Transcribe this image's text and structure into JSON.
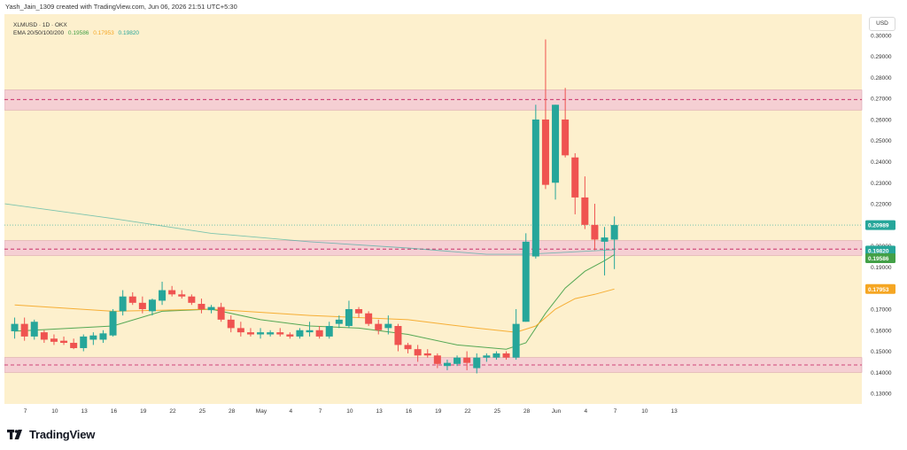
{
  "header": {
    "text": "Yash_Jain_1309 created with TradingView.com, Jun 06, 2026 21:51 UTC+5:30"
  },
  "legend": {
    "symbol_line": "XLMUSD · 1D · OKX",
    "ema_label": "EMA 20/50/100/200",
    "ema_values": [
      "0.19586",
      "0.17953",
      "0.19820"
    ],
    "ema_colors": [
      "#43a047",
      "#f5a623",
      "#26a69a"
    ]
  },
  "currency": "USD",
  "footer": {
    "logo_text": "TradingView"
  },
  "colors": {
    "background": "#fdf0cd",
    "up": "#26a69a",
    "down": "#ef5350",
    "zone_fill": "#f3c9d3",
    "zone_edge": "#c2185b",
    "ema20": "#43a047",
    "ema50": "#f5a623",
    "ema200": "#26a69a",
    "price_label": "#26a69a"
  },
  "chart_data": {
    "type": "candlestick",
    "symbol": "XLMUSD",
    "timeframe": "1D",
    "exchange": "OKX",
    "ylim": [
      0.125,
      0.31
    ],
    "y_ticks": [
      0.13,
      0.14,
      0.15,
      0.16,
      0.17,
      0.18,
      0.19,
      0.2,
      0.21,
      0.22,
      0.23,
      0.24,
      0.25,
      0.26,
      0.27,
      0.28,
      0.29,
      0.3
    ],
    "y_tick_labels": [
      "0.13000",
      "0.14000",
      "0.15000",
      "0.16000",
      "0.17000",
      "0.18000",
      "0.19000",
      "0.20000",
      "0.21000",
      "0.22000",
      "0.23000",
      "0.24000",
      "0.25000",
      "0.26000",
      "0.27000",
      "0.28000",
      "0.29000",
      "0.30000"
    ],
    "x_tick_labels": [
      "7",
      "10",
      "13",
      "16",
      "19",
      "22",
      "25",
      "28",
      "May",
      "4",
      "7",
      "10",
      "13",
      "16",
      "19",
      "22",
      "25",
      "28",
      "Jun",
      "4",
      "7",
      "10",
      "13"
    ],
    "x_start_index": 0,
    "x_tick_step": 3,
    "total_slots": 69,
    "candles": [
      {
        "o": 0.1595,
        "h": 0.166,
        "l": 0.156,
        "c": 0.163
      },
      {
        "o": 0.163,
        "h": 0.166,
        "l": 0.155,
        "c": 0.157
      },
      {
        "o": 0.157,
        "h": 0.165,
        "l": 0.1555,
        "c": 0.164
      },
      {
        "o": 0.159,
        "h": 0.16,
        "l": 0.154,
        "c": 0.1555
      },
      {
        "o": 0.156,
        "h": 0.158,
        "l": 0.153,
        "c": 0.1545
      },
      {
        "o": 0.155,
        "h": 0.157,
        "l": 0.153,
        "c": 0.154
      },
      {
        "o": 0.154,
        "h": 0.156,
        "l": 0.151,
        "c": 0.1515
      },
      {
        "o": 0.1515,
        "h": 0.158,
        "l": 0.15,
        "c": 0.157
      },
      {
        "o": 0.1555,
        "h": 0.159,
        "l": 0.153,
        "c": 0.1575
      },
      {
        "o": 0.1555,
        "h": 0.16,
        "l": 0.154,
        "c": 0.1585
      },
      {
        "o": 0.1575,
        "h": 0.17,
        "l": 0.157,
        "c": 0.169
      },
      {
        "o": 0.169,
        "h": 0.179,
        "l": 0.167,
        "c": 0.176
      },
      {
        "o": 0.176,
        "h": 0.178,
        "l": 0.172,
        "c": 0.173
      },
      {
        "o": 0.173,
        "h": 0.176,
        "l": 0.168,
        "c": 0.17
      },
      {
        "o": 0.169,
        "h": 0.175,
        "l": 0.167,
        "c": 0.1745
      },
      {
        "o": 0.174,
        "h": 0.183,
        "l": 0.172,
        "c": 0.179
      },
      {
        "o": 0.179,
        "h": 0.181,
        "l": 0.176,
        "c": 0.177
      },
      {
        "o": 0.177,
        "h": 0.179,
        "l": 0.175,
        "c": 0.176
      },
      {
        "o": 0.176,
        "h": 0.177,
        "l": 0.172,
        "c": 0.173
      },
      {
        "o": 0.1725,
        "h": 0.175,
        "l": 0.168,
        "c": 0.17
      },
      {
        "o": 0.1695,
        "h": 0.172,
        "l": 0.168,
        "c": 0.171
      },
      {
        "o": 0.171,
        "h": 0.173,
        "l": 0.164,
        "c": 0.165
      },
      {
        "o": 0.165,
        "h": 0.167,
        "l": 0.159,
        "c": 0.161
      },
      {
        "o": 0.161,
        "h": 0.164,
        "l": 0.157,
        "c": 0.159
      },
      {
        "o": 0.159,
        "h": 0.161,
        "l": 0.157,
        "c": 0.158
      },
      {
        "o": 0.158,
        "h": 0.161,
        "l": 0.156,
        "c": 0.159
      },
      {
        "o": 0.158,
        "h": 0.16,
        "l": 0.157,
        "c": 0.159
      },
      {
        "o": 0.159,
        "h": 0.161,
        "l": 0.157,
        "c": 0.158
      },
      {
        "o": 0.158,
        "h": 0.159,
        "l": 0.156,
        "c": 0.157
      },
      {
        "o": 0.157,
        "h": 0.161,
        "l": 0.156,
        "c": 0.16
      },
      {
        "o": 0.159,
        "h": 0.164,
        "l": 0.157,
        "c": 0.16
      },
      {
        "o": 0.16,
        "h": 0.162,
        "l": 0.156,
        "c": 0.157
      },
      {
        "o": 0.157,
        "h": 0.164,
        "l": 0.156,
        "c": 0.162
      },
      {
        "o": 0.163,
        "h": 0.167,
        "l": 0.161,
        "c": 0.165
      },
      {
        "o": 0.162,
        "h": 0.174,
        "l": 0.161,
        "c": 0.17
      },
      {
        "o": 0.17,
        "h": 0.171,
        "l": 0.166,
        "c": 0.168
      },
      {
        "o": 0.168,
        "h": 0.169,
        "l": 0.162,
        "c": 0.163
      },
      {
        "o": 0.163,
        "h": 0.165,
        "l": 0.158,
        "c": 0.16
      },
      {
        "o": 0.161,
        "h": 0.167,
        "l": 0.158,
        "c": 0.163
      },
      {
        "o": 0.162,
        "h": 0.163,
        "l": 0.15,
        "c": 0.153
      },
      {
        "o": 0.153,
        "h": 0.154,
        "l": 0.149,
        "c": 0.151
      },
      {
        "o": 0.151,
        "h": 0.153,
        "l": 0.145,
        "c": 0.148
      },
      {
        "o": 0.149,
        "h": 0.151,
        "l": 0.147,
        "c": 0.148
      },
      {
        "o": 0.148,
        "h": 0.149,
        "l": 0.142,
        "c": 0.144
      },
      {
        "o": 0.143,
        "h": 0.146,
        "l": 0.141,
        "c": 0.1445
      },
      {
        "o": 0.144,
        "h": 0.148,
        "l": 0.143,
        "c": 0.147
      },
      {
        "o": 0.147,
        "h": 0.15,
        "l": 0.141,
        "c": 0.1445
      },
      {
        "o": 0.142,
        "h": 0.149,
        "l": 0.1395,
        "c": 0.147
      },
      {
        "o": 0.147,
        "h": 0.149,
        "l": 0.145,
        "c": 0.148
      },
      {
        "o": 0.147,
        "h": 0.15,
        "l": 0.146,
        "c": 0.149
      },
      {
        "o": 0.149,
        "h": 0.15,
        "l": 0.146,
        "c": 0.147
      },
      {
        "o": 0.147,
        "h": 0.17,
        "l": 0.146,
        "c": 0.163
      },
      {
        "o": 0.164,
        "h": 0.206,
        "l": 0.164,
        "c": 0.202
      },
      {
        "o": 0.195,
        "h": 0.267,
        "l": 0.194,
        "c": 0.26
      },
      {
        "o": 0.26,
        "h": 0.298,
        "l": 0.227,
        "c": 0.229
      },
      {
        "o": 0.23,
        "h": 0.267,
        "l": 0.222,
        "c": 0.267
      },
      {
        "o": 0.26,
        "h": 0.275,
        "l": 0.242,
        "c": 0.243
      },
      {
        "o": 0.242,
        "h": 0.244,
        "l": 0.215,
        "c": 0.223
      },
      {
        "o": 0.223,
        "h": 0.233,
        "l": 0.208,
        "c": 0.21
      },
      {
        "o": 0.21,
        "h": 0.22,
        "l": 0.198,
        "c": 0.203
      },
      {
        "o": 0.202,
        "h": 0.209,
        "l": 0.186,
        "c": 0.204
      },
      {
        "o": 0.203,
        "h": 0.214,
        "l": 0.189,
        "c": 0.2099
      }
    ],
    "ema": [
      {
        "name": "EMA 20",
        "value": 0.19586,
        "points": [
          [
            0,
            0.1595
          ],
          [
            10,
            0.162
          ],
          [
            15,
            0.169
          ],
          [
            20,
            0.17
          ],
          [
            25,
            0.165
          ],
          [
            30,
            0.162
          ],
          [
            35,
            0.161
          ],
          [
            40,
            0.158
          ],
          [
            45,
            0.153
          ],
          [
            50,
            0.151
          ],
          [
            52,
            0.154
          ],
          [
            54,
            0.168
          ],
          [
            56,
            0.18
          ],
          [
            58,
            0.188
          ],
          [
            60,
            0.193
          ],
          [
            61,
            0.19586
          ]
        ]
      },
      {
        "name": "EMA 50",
        "value": 0.17953,
        "points": [
          [
            0,
            0.172
          ],
          [
            10,
            0.169
          ],
          [
            20,
            0.17
          ],
          [
            30,
            0.167
          ],
          [
            40,
            0.165
          ],
          [
            47,
            0.161
          ],
          [
            51,
            0.159
          ],
          [
            53,
            0.162
          ],
          [
            55,
            0.17
          ],
          [
            57,
            0.175
          ],
          [
            59,
            0.177
          ],
          [
            61,
            0.17953
          ]
        ]
      },
      {
        "name": "EMA 200",
        "value": 0.1982,
        "points": [
          [
            -1,
            0.22
          ],
          [
            10,
            0.213
          ],
          [
            20,
            0.206
          ],
          [
            30,
            0.202
          ],
          [
            40,
            0.199
          ],
          [
            48,
            0.196
          ],
          [
            52,
            0.196
          ],
          [
            56,
            0.197
          ],
          [
            61,
            0.1982
          ]
        ]
      }
    ],
    "zones": [
      {
        "low": 0.2645,
        "high": 0.274,
        "mid": 0.2695
      },
      {
        "low": 0.1955,
        "high": 0.2025,
        "mid": 0.1985
      },
      {
        "low": 0.14,
        "high": 0.147,
        "mid": 0.1435
      }
    ],
    "price_labels": [
      {
        "text": "0.20989",
        "value": 0.20989,
        "color": "#26a69a"
      },
      {
        "text": "0.19820",
        "value": 0.1982,
        "color": "#26a69a"
      },
      {
        "text": "0.19586",
        "value": 0.19586,
        "color": "#43a047"
      },
      {
        "text": "0.17953",
        "value": 0.17953,
        "color": "#f5a623"
      }
    ],
    "xlabel": "",
    "ylabel": ""
  }
}
